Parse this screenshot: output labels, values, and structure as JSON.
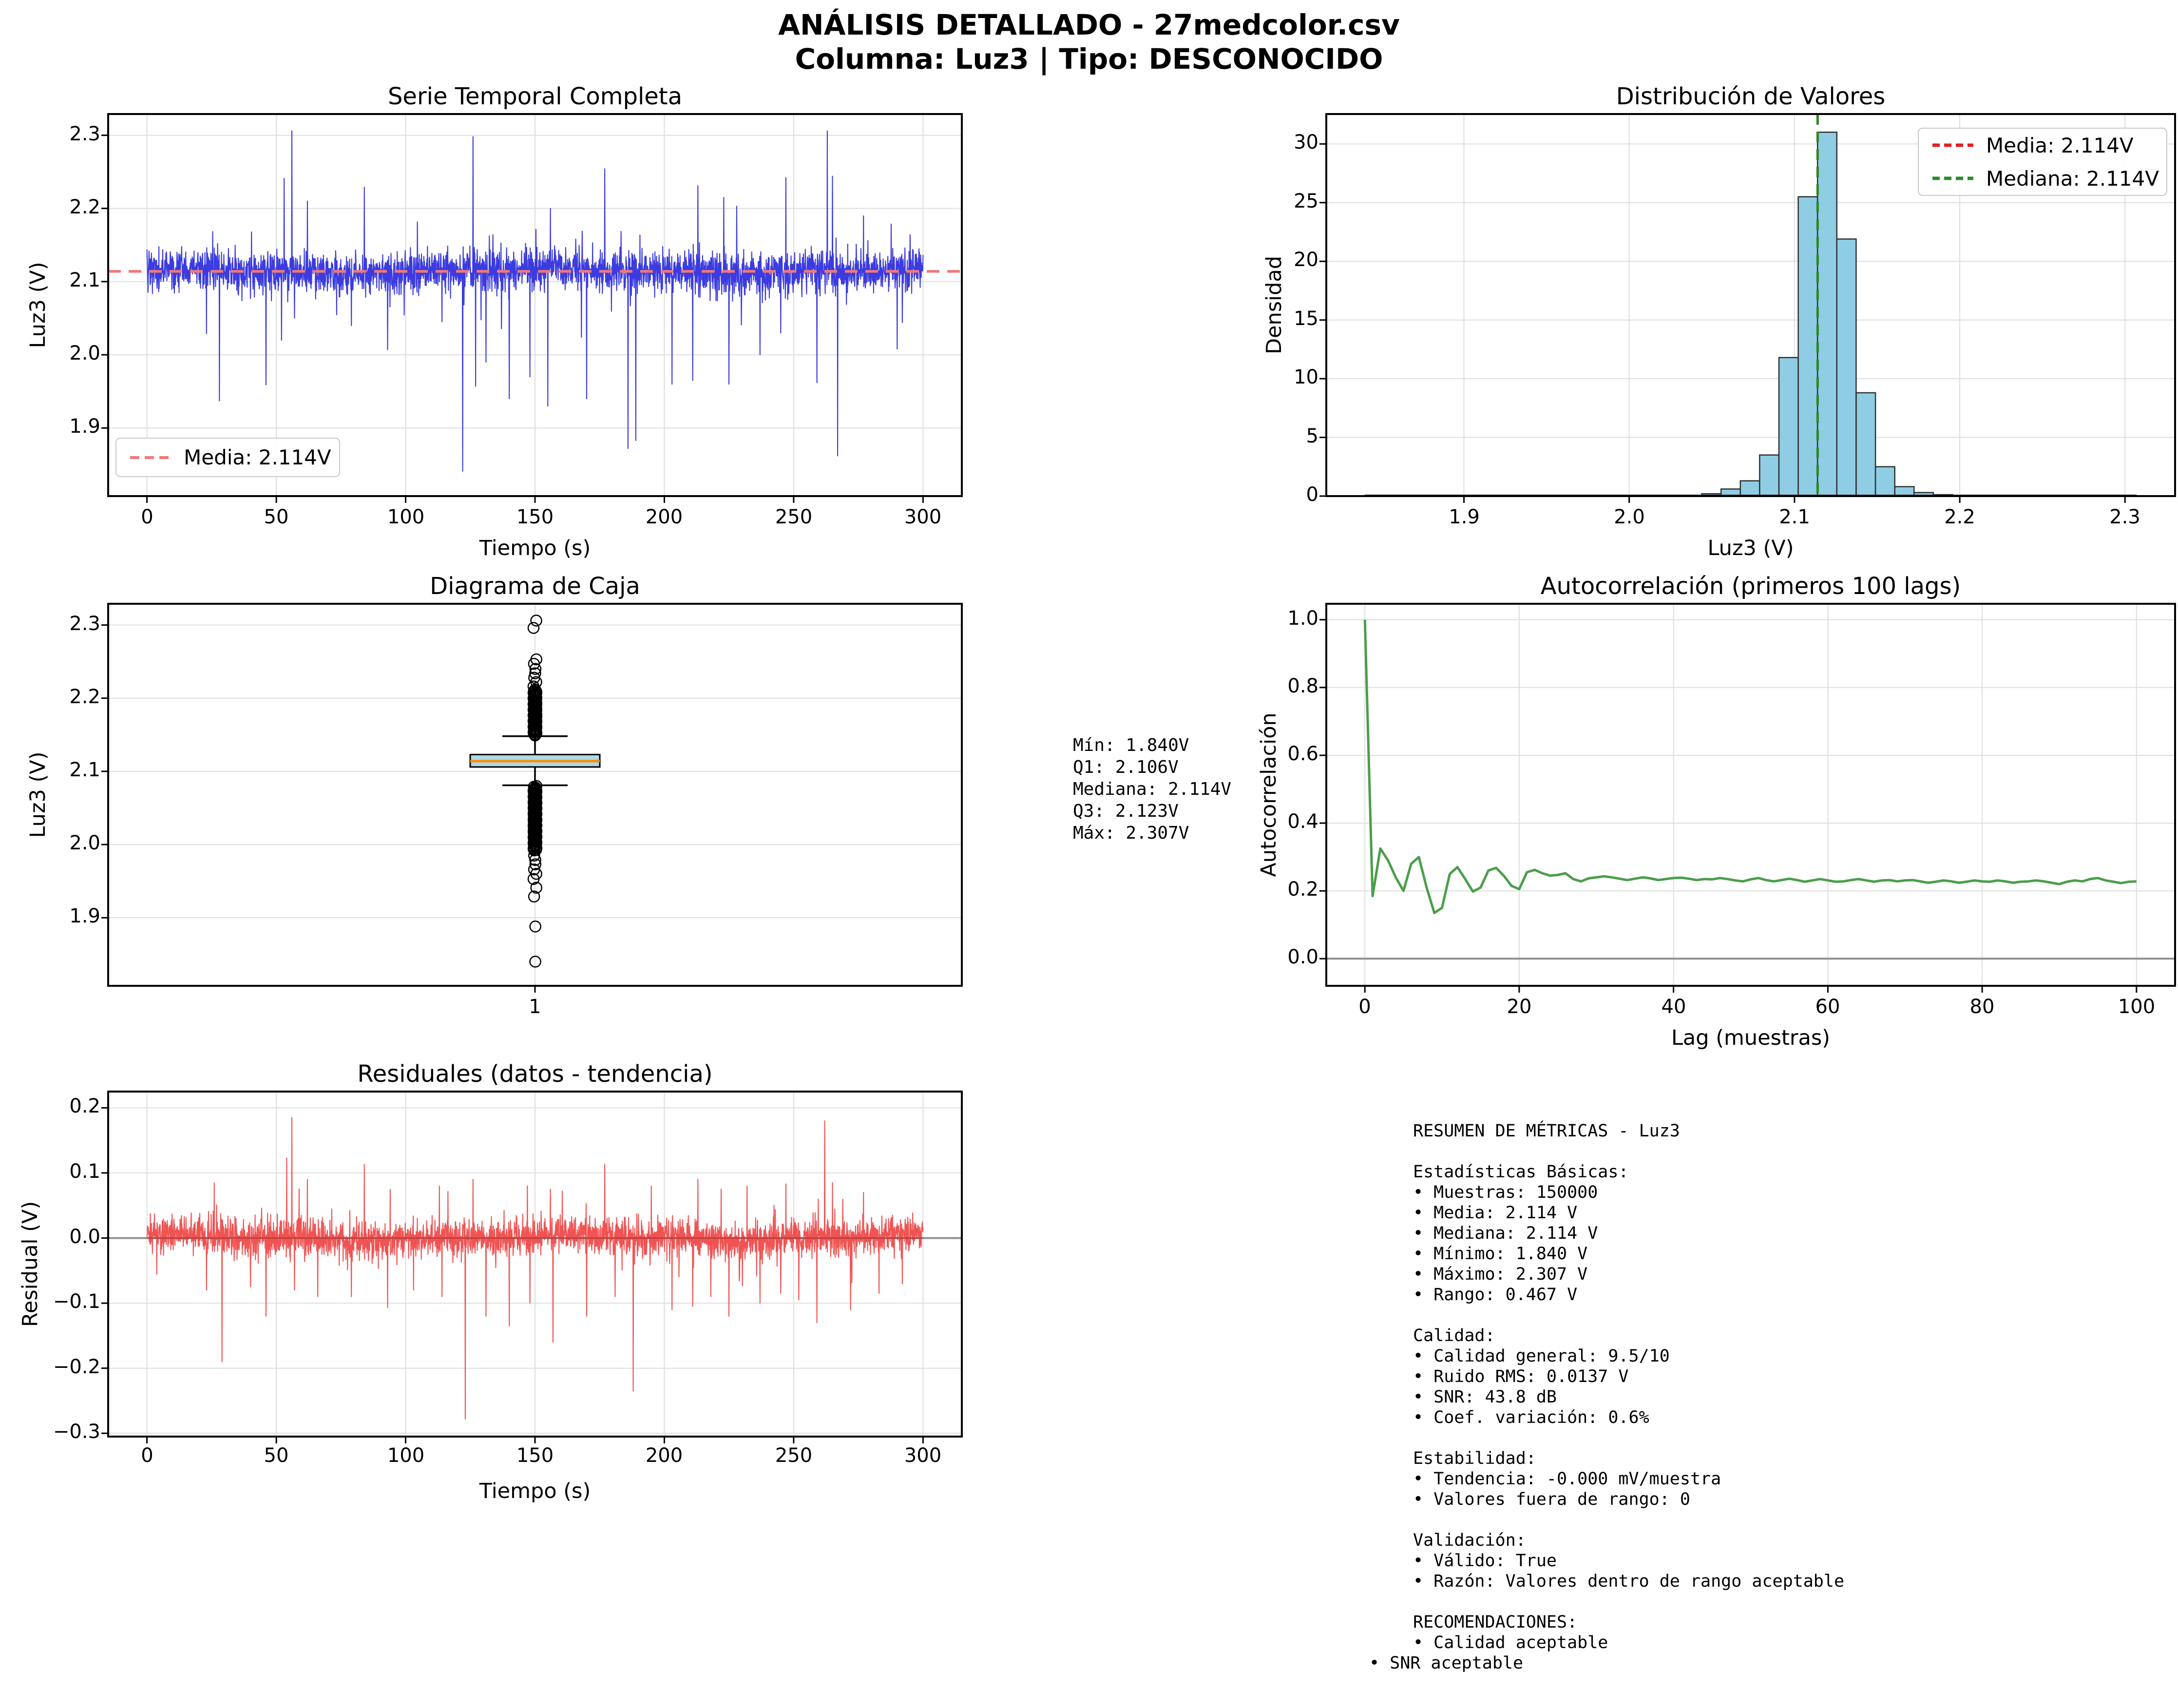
{
  "suptitle": {
    "line1": "ANÁLISIS DETALLADO - 27medcolor.csv",
    "line2": "Columna: Luz3 | Tipo: DESCONOCIDO"
  },
  "chart_data": [
    {
      "id": "serie",
      "type": "line",
      "title": "Serie Temporal Completa",
      "xlabel": "Tiempo (s)",
      "ylabel": "Luz3 (V)",
      "xlim": [
        -15,
        315
      ],
      "ylim": [
        1.807,
        2.329
      ],
      "xticks": [
        [
          0,
          "0"
        ],
        [
          50,
          "50"
        ],
        [
          100,
          "100"
        ],
        [
          150,
          "150"
        ],
        [
          200,
          "200"
        ],
        [
          250,
          "250"
        ],
        [
          300,
          "300"
        ]
      ],
      "yticks": [
        [
          1.9,
          "1.9"
        ],
        [
          2.0,
          "2.0"
        ],
        [
          2.1,
          "2.1"
        ],
        [
          2.2,
          "2.2"
        ],
        [
          2.3,
          "2.3"
        ]
      ],
      "grid": true,
      "line_color": "#3b3be0",
      "mean_line": {
        "value": 2.114,
        "color": "#f07878",
        "label": "Media: 2.114V"
      },
      "signal": {
        "n": 3000,
        "t_start": 0,
        "t_end": 300,
        "mean": 2.114,
        "sigma": 0.0137,
        "seed": 20240607,
        "tail_prob": 0.018
      },
      "spikes": [
        [
          23,
          2.029
        ],
        [
          28,
          1.937
        ],
        [
          46,
          1.959
        ],
        [
          52,
          2.02
        ],
        [
          53,
          2.241
        ],
        [
          56,
          2.306
        ],
        [
          62,
          2.21
        ],
        [
          79,
          2.04
        ],
        [
          84,
          2.229
        ],
        [
          93,
          2.007
        ],
        [
          114,
          2.045
        ],
        [
          122,
          1.841
        ],
        [
          126,
          2.298
        ],
        [
          127,
          1.957
        ],
        [
          131,
          1.99
        ],
        [
          140,
          1.94
        ],
        [
          148,
          1.97
        ],
        [
          155,
          1.93
        ],
        [
          156,
          2.2
        ],
        [
          168,
          2.024
        ],
        [
          170,
          1.94
        ],
        [
          177,
          2.254
        ],
        [
          186,
          1.872
        ],
        [
          189,
          1.883
        ],
        [
          203,
          1.96
        ],
        [
          211,
          1.965
        ],
        [
          213,
          2.231
        ],
        [
          223,
          2.215
        ],
        [
          225,
          1.96
        ],
        [
          228,
          2.203
        ],
        [
          237,
          2.0
        ],
        [
          245,
          2.03
        ],
        [
          247,
          2.242
        ],
        [
          259,
          1.962
        ],
        [
          263,
          2.306
        ],
        [
          265,
          2.244
        ],
        [
          267,
          1.862
        ],
        [
          277,
          2.19
        ],
        [
          290,
          2.008
        ],
        [
          292,
          2.044
        ]
      ]
    },
    {
      "id": "dist",
      "type": "histogram",
      "title": "Distribución de Valores",
      "xlabel": "Luz3 (V)",
      "ylabel": "Densidad",
      "xlim": [
        1.8167,
        2.3303
      ],
      "ylim": [
        0,
        32.55
      ],
      "xticks": [
        [
          1.9,
          "1.9"
        ],
        [
          2.0,
          "2.0"
        ],
        [
          2.1,
          "2.1"
        ],
        [
          2.2,
          "2.2"
        ],
        [
          2.3,
          "2.3"
        ]
      ],
      "yticks": [
        [
          0,
          "0"
        ],
        [
          5,
          "5"
        ],
        [
          10,
          "10"
        ],
        [
          15,
          "15"
        ],
        [
          20,
          "20"
        ],
        [
          25,
          "25"
        ],
        [
          30,
          "30"
        ]
      ],
      "grid": true,
      "bar_color": "#8fcde4",
      "bar_edge": "#2f2f2f",
      "bins": {
        "start": 2.0322,
        "width": 0.01168,
        "densities": [
          0.05,
          0.2,
          0.6,
          1.3,
          3.5,
          11.8,
          25.5,
          31.0,
          21.9,
          8.8,
          2.5,
          0.8,
          0.3,
          0.12,
          0.05
        ]
      },
      "data_range": [
        1.84,
        2.307
      ],
      "vlines": [
        {
          "value": 2.114,
          "color": "#e02020",
          "label": "Media: 2.114V"
        },
        {
          "value": 2.114,
          "color": "#2a8c2a",
          "label": "Mediana: 2.114V"
        }
      ]
    },
    {
      "id": "caja",
      "type": "box",
      "title": "Diagrama de Caja",
      "xlabel": "",
      "ylabel": "Luz3 (V)",
      "xlim": [
        0.5,
        1.5
      ],
      "ylim": [
        1.807,
        2.329
      ],
      "xticks": [
        [
          1,
          "1"
        ]
      ],
      "yticks": [
        [
          1.9,
          "1.9"
        ],
        [
          2.0,
          "2.0"
        ],
        [
          2.1,
          "2.1"
        ],
        [
          2.2,
          "2.2"
        ],
        [
          2.3,
          "2.3"
        ]
      ],
      "grid": true,
      "box": {
        "q1": 2.106,
        "median": 2.114,
        "q3": 2.123,
        "whisker_low": 2.081,
        "whisker_high": 2.148,
        "min": 1.84,
        "max": 2.307,
        "fill": "#add8e6",
        "median_color": "#ff8c00"
      },
      "outliers": {
        "dense_above": [
          2.149,
          2.212
        ],
        "sparse_above": [
          2.216,
          2.222,
          2.228,
          2.234,
          2.24,
          2.247,
          2.253,
          2.296,
          2.306
        ],
        "dense_below": [
          1.992,
          2.081
        ],
        "sparse_below": [
          1.985,
          1.979,
          1.973,
          1.966,
          1.96,
          1.953,
          1.941,
          1.929,
          1.888,
          1.84
        ]
      },
      "annotation": [
        "Mín: 1.840V",
        "Q1: 2.106V",
        "Mediana: 2.114V",
        "Q3: 2.123V",
        "Máx: 2.307V"
      ]
    },
    {
      "id": "autocorr",
      "type": "line",
      "title": "Autocorrelación (primeros 100 lags)",
      "xlabel": "Lag (muestras)",
      "ylabel": "Autocorrelación",
      "xlim": [
        -5,
        105
      ],
      "ylim": [
        -0.08,
        1.047
      ],
      "xticks": [
        [
          0,
          "0"
        ],
        [
          20,
          "20"
        ],
        [
          40,
          "40"
        ],
        [
          60,
          "60"
        ],
        [
          80,
          "80"
        ],
        [
          100,
          "100"
        ]
      ],
      "yticks": [
        [
          0.0,
          "0.0"
        ],
        [
          0.2,
          "0.2"
        ],
        [
          0.4,
          "0.4"
        ],
        [
          0.6,
          "0.6"
        ],
        [
          0.8,
          "0.8"
        ],
        [
          1.0,
          "1.0"
        ]
      ],
      "grid": true,
      "line_color": "#4a9e4a",
      "zero_line": true,
      "values": [
        1.0,
        0.185,
        0.325,
        0.29,
        0.24,
        0.2,
        0.28,
        0.3,
        0.21,
        0.135,
        0.15,
        0.25,
        0.27,
        0.235,
        0.198,
        0.21,
        0.26,
        0.268,
        0.245,
        0.215,
        0.205,
        0.255,
        0.262,
        0.252,
        0.245,
        0.247,
        0.252,
        0.235,
        0.228,
        0.237,
        0.24,
        0.243,
        0.24,
        0.236,
        0.232,
        0.236,
        0.24,
        0.237,
        0.232,
        0.235,
        0.238,
        0.239,
        0.236,
        0.232,
        0.235,
        0.234,
        0.238,
        0.235,
        0.231,
        0.228,
        0.234,
        0.238,
        0.232,
        0.228,
        0.232,
        0.236,
        0.232,
        0.227,
        0.231,
        0.235,
        0.231,
        0.227,
        0.228,
        0.232,
        0.235,
        0.231,
        0.227,
        0.231,
        0.232,
        0.228,
        0.231,
        0.232,
        0.228,
        0.224,
        0.227,
        0.231,
        0.228,
        0.224,
        0.227,
        0.231,
        0.228,
        0.227,
        0.231,
        0.228,
        0.224,
        0.227,
        0.228,
        0.231,
        0.228,
        0.224,
        0.22,
        0.227,
        0.231,
        0.228,
        0.235,
        0.238,
        0.231,
        0.227,
        0.223,
        0.227,
        0.228
      ]
    },
    {
      "id": "resid",
      "type": "line",
      "title": "Residuales (datos - tendencia)",
      "xlabel": "Tiempo (s)",
      "ylabel": "Residual (V)",
      "xlim": [
        -15,
        315
      ],
      "ylim": [
        -0.305,
        0.225
      ],
      "xticks": [
        [
          0,
          "0"
        ],
        [
          50,
          "50"
        ],
        [
          100,
          "100"
        ],
        [
          150,
          "150"
        ],
        [
          200,
          "200"
        ],
        [
          250,
          "250"
        ],
        [
          300,
          "300"
        ]
      ],
      "yticks": [
        [
          0.2,
          "0.2"
        ],
        [
          0.1,
          "0.1"
        ],
        [
          0.0,
          "0.0"
        ],
        [
          -0.1,
          "−0.1"
        ],
        [
          -0.2,
          "−0.2"
        ],
        [
          -0.3,
          "−0.3"
        ]
      ],
      "grid": true,
      "line_color": "#f15353",
      "zero_line": true,
      "signal": {
        "n": 3000,
        "t_start": 0,
        "t_end": 300,
        "mean": 0,
        "sigma": 0.0137,
        "seed": 777333,
        "tail_prob": 0.018
      },
      "spikes": [
        [
          23,
          -0.08
        ],
        [
          26,
          0.085
        ],
        [
          29,
          -0.19
        ],
        [
          40,
          -0.075
        ],
        [
          46,
          -0.12
        ],
        [
          54,
          0.123
        ],
        [
          56,
          0.185
        ],
        [
          57,
          -0.08
        ],
        [
          62,
          0.09
        ],
        [
          66,
          -0.09
        ],
        [
          79,
          -0.09
        ],
        [
          84,
          0.113
        ],
        [
          93,
          -0.107
        ],
        [
          94,
          0.075
        ],
        [
          103,
          -0.08
        ],
        [
          113,
          0.08
        ],
        [
          114,
          -0.09
        ],
        [
          123,
          -0.278
        ],
        [
          126,
          0.09
        ],
        [
          131,
          -0.12
        ],
        [
          140,
          -0.135
        ],
        [
          147,
          0.08
        ],
        [
          148,
          -0.1
        ],
        [
          156,
          0.075
        ],
        [
          157,
          -0.16
        ],
        [
          170,
          -0.12
        ],
        [
          177,
          0.113
        ],
        [
          181,
          -0.09
        ],
        [
          188,
          -0.235
        ],
        [
          195,
          0.08
        ],
        [
          203,
          -0.11
        ],
        [
          211,
          -0.105
        ],
        [
          213,
          0.09
        ],
        [
          218,
          -0.09
        ],
        [
          222,
          0.075
        ],
        [
          225,
          -0.12
        ],
        [
          232,
          0.08
        ],
        [
          237,
          -0.1
        ],
        [
          245,
          -0.085
        ],
        [
          247,
          0.083
        ],
        [
          252,
          -0.095
        ],
        [
          259,
          -0.13
        ],
        [
          262,
          0.18
        ],
        [
          265,
          0.085
        ],
        [
          272,
          -0.11
        ],
        [
          277,
          0.07
        ],
        [
          283,
          -0.085
        ],
        [
          292,
          -0.07
        ]
      ]
    }
  ],
  "metrics": {
    "lines": [
      "RESUMEN DE MÉTRICAS - Luz3",
      "",
      "Estadísticas Básicas:",
      "• Muestras: 150000",
      "• Media: 2.114 V",
      "• Mediana: 2.114 V",
      "• Mínimo: 1.840 V",
      "• Máximo: 2.307 V",
      "• Rango: 0.467 V",
      "",
      "Calidad:",
      "• Calidad general: 9.5/10",
      "• Ruido RMS: 0.0137 V",
      "• SNR: 43.8 dB",
      "• Coef. variación: 0.6%",
      "",
      "Estabilidad:",
      "• Tendencia: -0.000 mV/muestra",
      "• Valores fuera de rango: 0",
      "",
      "Validación:",
      "• Válido: True",
      "• Razón: Valores dentro de rango aceptable",
      "",
      "RECOMENDACIONES:",
      "• Calidad aceptable",
      "• SNR aceptable"
    ],
    "outdent_index": 26
  }
}
